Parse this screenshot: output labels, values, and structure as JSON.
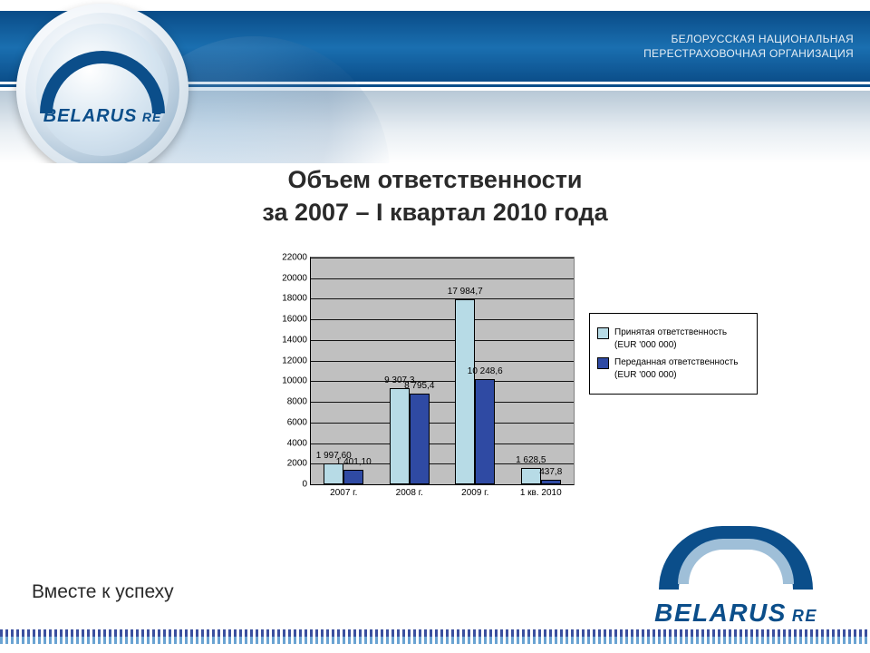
{
  "org": {
    "line1": "БЕЛОРУССКАЯ НАЦИОНАЛЬНАЯ",
    "line2": "ПЕРЕСТРАХОВОЧНАЯ ОРГАНИЗАЦИЯ"
  },
  "logo": {
    "line1": "BELARUS",
    "line2": "RE"
  },
  "title": {
    "line1": "Объем ответственности",
    "line2": "за 2007 –  I квартал 2010 года"
  },
  "tagline": "Вместе к успеху",
  "chart": {
    "type": "bar",
    "categories": [
      "2007 г.",
      "2008 г.",
      "2009 г.",
      "1 кв. 2010"
    ],
    "series": [
      {
        "name": "Принятая ответственность (EUR '000 000)",
        "color": "#b7dbe6",
        "values": [
          1997.6,
          9307.3,
          17984.7,
          1628.5
        ],
        "value_labels": [
          "1 997,60",
          "9 307,3",
          "17 984,7",
          "1 628,5"
        ]
      },
      {
        "name": "Переданная ответственность (EUR '000 000)",
        "color": "#2f4aa3",
        "values": [
          1401.1,
          8795.4,
          10248.6,
          437.8
        ],
        "value_labels": [
          "1 401,10",
          "8 795,4",
          "10 248,6",
          "437,8"
        ]
      }
    ],
    "ylim": [
      0,
      22000
    ],
    "ytick_step": 2000,
    "yticks": [
      "0",
      "2000",
      "4000",
      "6000",
      "8000",
      "10000",
      "12000",
      "14000",
      "16000",
      "18000",
      "20000",
      "22000"
    ],
    "plot_bg": "#c0c0c0",
    "grid_color": "#000000",
    "label_fontsize": 10,
    "bar_colors": {
      "light": "#b7dbe6",
      "dark": "#2f4aa3"
    }
  },
  "colors": {
    "header_blue": "#0b4e8a",
    "header_grad": "#b7c8d6",
    "text_dark": "#2a2a2a"
  }
}
